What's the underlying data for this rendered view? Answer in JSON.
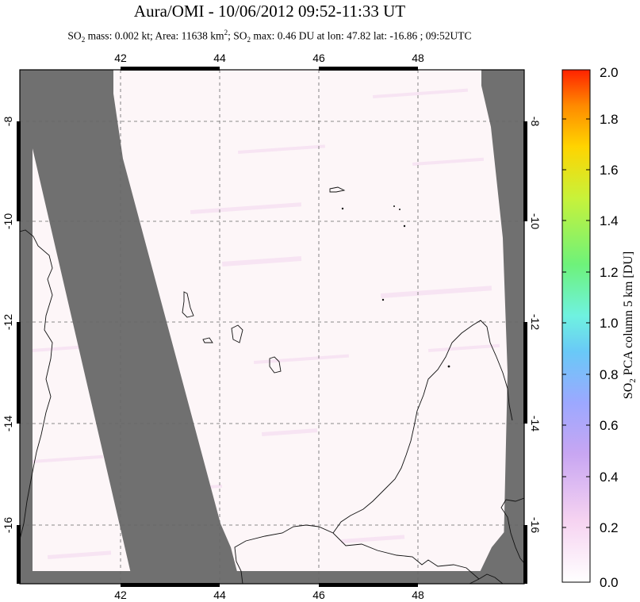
{
  "header": {
    "title": "Aura/OMI - 10/06/2012 09:52-11:33 UT",
    "subtitle_parts": {
      "p1": "SO",
      "p1_sub": "2",
      "p2": " mass: 0.002 kt; Area: 11638 km",
      "p2_sup": "2",
      "p3": "; SO",
      "p3_sub": "2",
      "p4": " max: 0.46 DU at lon: 47.82 lat: -16.86 ; 09:52UTC"
    }
  },
  "map": {
    "lon_range": [
      40.0,
      50.0
    ],
    "lat_range": [
      -17.0,
      -7.0
    ],
    "lon_ticks": [
      42,
      44,
      46,
      48
    ],
    "lat_ticks": [
      -8,
      -10,
      -12,
      -14,
      -16
    ],
    "lon_tick_labels": [
      "42",
      "44",
      "46",
      "48"
    ],
    "lat_tick_labels": [
      "-8",
      "-10",
      "-12",
      "-14",
      "-16"
    ],
    "grid": "dashed",
    "missing_data_color": "#707070",
    "background_color": "#fdf6f8"
  },
  "colorbar": {
    "title_prefix": "SO",
    "title_sub": "2",
    "title_suffix": " PCA column 5 km [DU]",
    "range": [
      0.0,
      2.0
    ],
    "labels": [
      "2.0",
      "1.8",
      "1.6",
      "1.4",
      "1.2",
      "1.0",
      "0.8",
      "0.6",
      "0.4",
      "0.2",
      "0.0"
    ],
    "colors": [
      "#ffffff",
      "#f5c9f0",
      "#bba2f5",
      "#7fa8ff",
      "#63e6f2",
      "#6ef27f",
      "#c3f23b",
      "#ffd600",
      "#ff8a00",
      "#ff2a00"
    ]
  }
}
